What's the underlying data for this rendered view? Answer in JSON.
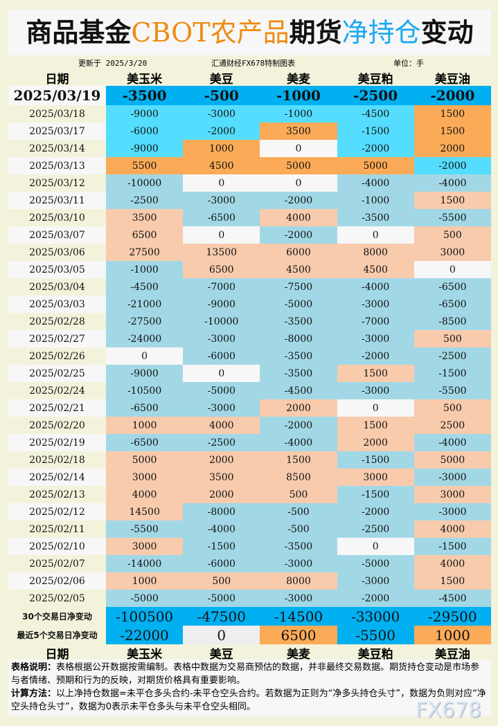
{
  "title": {
    "p1": "商品基金",
    "p2": "CBOT农产品",
    "p3": "期货",
    "p4": "净持仓",
    "p5": "变动"
  },
  "subheader": {
    "updated": "更新于 2025/3/20",
    "source": "汇通财经FX678特制图表",
    "unit": "单位：手"
  },
  "columns": [
    "日期",
    "美玉米",
    "美豆",
    "美麦",
    "美豆粕",
    "美豆油"
  ],
  "colors": {
    "top": "#00b0f0",
    "bright_neg": "#55ddff",
    "bright_pos": "#fbab57",
    "pale_neg": "#a2d8e6",
    "pale_pos": "#f8cbad",
    "zero": "#f7f7f7"
  },
  "latest": {
    "date": "2025/03/19",
    "values": [
      -3500,
      -500,
      -1000,
      -2500,
      -2000
    ]
  },
  "rows": [
    {
      "date": "2025/03/18",
      "style": "bright",
      "values": [
        -9000,
        -3000,
        -1000,
        -4500,
        1500
      ]
    },
    {
      "date": "2025/03/17",
      "style": "bright",
      "values": [
        -6000,
        -2000,
        3500,
        -1500,
        1500
      ]
    },
    {
      "date": "2025/03/14",
      "style": "bright",
      "values": [
        -9000,
        1000,
        0,
        -2000,
        2000
      ]
    },
    {
      "date": "2025/03/13",
      "style": "bright",
      "values": [
        5500,
        4500,
        5000,
        5000,
        -2000
      ]
    },
    {
      "date": "2025/03/12",
      "style": "pale",
      "values": [
        -10000,
        0,
        0,
        -4000,
        -4000
      ]
    },
    {
      "date": "2025/03/11",
      "style": "pale",
      "values": [
        -2500,
        -3000,
        -2000,
        -1000,
        1500
      ]
    },
    {
      "date": "2025/03/10",
      "style": "pale",
      "values": [
        3500,
        -6500,
        4000,
        -3500,
        -5500
      ]
    },
    {
      "date": "2025/03/07",
      "style": "pale",
      "values": [
        6500,
        0,
        -2000,
        0,
        500
      ]
    },
    {
      "date": "2025/03/06",
      "style": "pale",
      "values": [
        27500,
        13500,
        6000,
        8000,
        3000
      ]
    },
    {
      "date": "2025/03/05",
      "style": "pale",
      "values": [
        -1000,
        6500,
        4500,
        4500,
        0
      ]
    },
    {
      "date": "2025/03/04",
      "style": "pale",
      "values": [
        -4500,
        -7000,
        -7500,
        -4000,
        -6500
      ]
    },
    {
      "date": "2025/03/03",
      "style": "pale",
      "values": [
        -21000,
        -9000,
        -5000,
        -3000,
        -6500
      ]
    },
    {
      "date": "2025/02/28",
      "style": "pale",
      "values": [
        -27500,
        -10000,
        -3500,
        -7000,
        -8500
      ]
    },
    {
      "date": "2025/02/27",
      "style": "pale",
      "values": [
        -24000,
        -3000,
        -8000,
        -3000,
        500
      ]
    },
    {
      "date": "2025/02/26",
      "style": "pale",
      "values": [
        0,
        -6000,
        -3500,
        -2000,
        -2500
      ]
    },
    {
      "date": "2025/02/25",
      "style": "pale",
      "values": [
        -9000,
        0,
        -3500,
        1500,
        -1500
      ]
    },
    {
      "date": "2025/02/24",
      "style": "pale",
      "values": [
        -10500,
        -5000,
        -4500,
        -3000,
        -5500
      ]
    },
    {
      "date": "2025/02/21",
      "style": "pale",
      "values": [
        -6500,
        -3000,
        2000,
        0,
        500
      ]
    },
    {
      "date": "2025/02/20",
      "style": "pale",
      "values": [
        1000,
        4000,
        -2000,
        1500,
        2500
      ]
    },
    {
      "date": "2025/02/19",
      "style": "pale",
      "values": [
        -6500,
        -2500,
        -4000,
        2000,
        -4000
      ]
    },
    {
      "date": "2025/02/18",
      "style": "pale",
      "values": [
        5000,
        2000,
        1500,
        -1500,
        5000
      ]
    },
    {
      "date": "2025/02/14",
      "style": "pale",
      "values": [
        3000,
        3500,
        8500,
        3000,
        -3000
      ]
    },
    {
      "date": "2025/02/13",
      "style": "pale",
      "values": [
        4000,
        2000,
        500,
        -1500,
        3000
      ]
    },
    {
      "date": "2025/02/12",
      "style": "pale",
      "values": [
        14500,
        -8000,
        -500,
        -2000,
        -3000
      ]
    },
    {
      "date": "2025/02/11",
      "style": "pale",
      "values": [
        -5500,
        -4000,
        -500,
        -2500,
        4000
      ]
    },
    {
      "date": "2025/02/10",
      "style": "pale",
      "values": [
        3000,
        -1500,
        -3500,
        0,
        -1500
      ]
    },
    {
      "date": "2025/02/07",
      "style": "pale",
      "values": [
        -14000,
        -6000,
        -3000,
        -5000,
        4000
      ]
    },
    {
      "date": "2025/02/06",
      "style": "pale",
      "values": [
        1000,
        500,
        8000,
        -3000,
        1500
      ]
    },
    {
      "date": "2025/02/05",
      "style": "pale",
      "values": [
        -5000,
        -5000,
        -3000,
        -2000,
        -4500
      ]
    }
  ],
  "summary": [
    {
      "label": "30个交易日净变动",
      "values": [
        -100500,
        -47500,
        -14500,
        -33000,
        -29500
      ]
    },
    {
      "label": "最近5个交易日净变动",
      "values": [
        -22000,
        0,
        6500,
        -5500,
        1000
      ]
    }
  ],
  "notes": {
    "label1": "表格说明：",
    "text1": "表格根据公开数据按需编制。表格中数据为交易商预估的数据，并非最终交易数据。期货持仓变动是市场参与者情绪、预期和行为的反映，对期货价格具有重要影响。",
    "label2": "计算方法：",
    "text2": "以上净持仓数据=未平仓多头合约-未平仓空头合约。若数据为正则为“净多头持仓头寸”，数据为负则对应“净空头持仓头寸”，数据为0表示未平仓多头与未平仓空头相同。"
  },
  "watermark": "FX678"
}
